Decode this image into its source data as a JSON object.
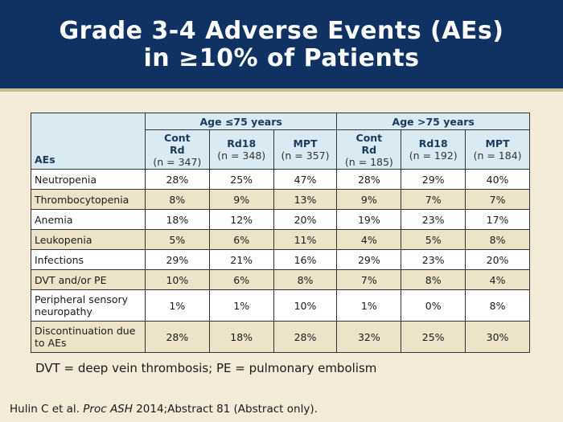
{
  "header": {
    "title_line1": "Grade 3-4 Adverse Events (AEs)",
    "title_line2": "in ≥10% of Patients"
  },
  "table": {
    "ae_header": "AEs",
    "groups": [
      "Age ≤75 years",
      "Age >75 years"
    ],
    "columns": [
      {
        "name_line1": "Cont",
        "name_line2": "Rd",
        "n": "(n = 347)"
      },
      {
        "name_line1": "Rd18",
        "name_line2": "",
        "n": "(n = 348)"
      },
      {
        "name_line1": "MPT",
        "name_line2": "",
        "n": "(n = 357)"
      },
      {
        "name_line1": "Cont",
        "name_line2": "Rd",
        "n": "(n = 185)"
      },
      {
        "name_line1": "Rd18",
        "name_line2": "",
        "n": "(n = 192)"
      },
      {
        "name_line1": "MPT",
        "name_line2": "",
        "n": "(n = 184)"
      }
    ],
    "rows": [
      {
        "label": "Neutropenia",
        "values": [
          "28%",
          "25%",
          "47%",
          "28%",
          "29%",
          "40%"
        ]
      },
      {
        "label": "Thrombocytopenia",
        "values": [
          "8%",
          "9%",
          "13%",
          "9%",
          "7%",
          "7%"
        ]
      },
      {
        "label": "Anemia",
        "values": [
          "18%",
          "12%",
          "20%",
          "19%",
          "23%",
          "17%"
        ]
      },
      {
        "label": "Leukopenia",
        "values": [
          "5%",
          "6%",
          "11%",
          "4%",
          "5%",
          "8%"
        ]
      },
      {
        "label": "Infections",
        "values": [
          "29%",
          "21%",
          "16%",
          "29%",
          "23%",
          "20%"
        ]
      },
      {
        "label": "DVT and/or PE",
        "values": [
          "10%",
          "6%",
          "8%",
          "7%",
          "8%",
          "4%"
        ]
      },
      {
        "label": "Peripheral sensory neuropathy",
        "values": [
          "1%",
          "1%",
          "10%",
          "1%",
          "0%",
          "8%"
        ]
      },
      {
        "label": "Discontinuation due to AEs",
        "values": [
          "28%",
          "18%",
          "28%",
          "32%",
          "25%",
          "30%"
        ]
      }
    ]
  },
  "footnote": "DVT = deep vein thrombosis; PE = pulmonary embolism",
  "citation": {
    "before": "Hulin C et al. ",
    "journal": "Proc ASH",
    "after": " 2014;Abstract 81 (Abstract only)."
  }
}
